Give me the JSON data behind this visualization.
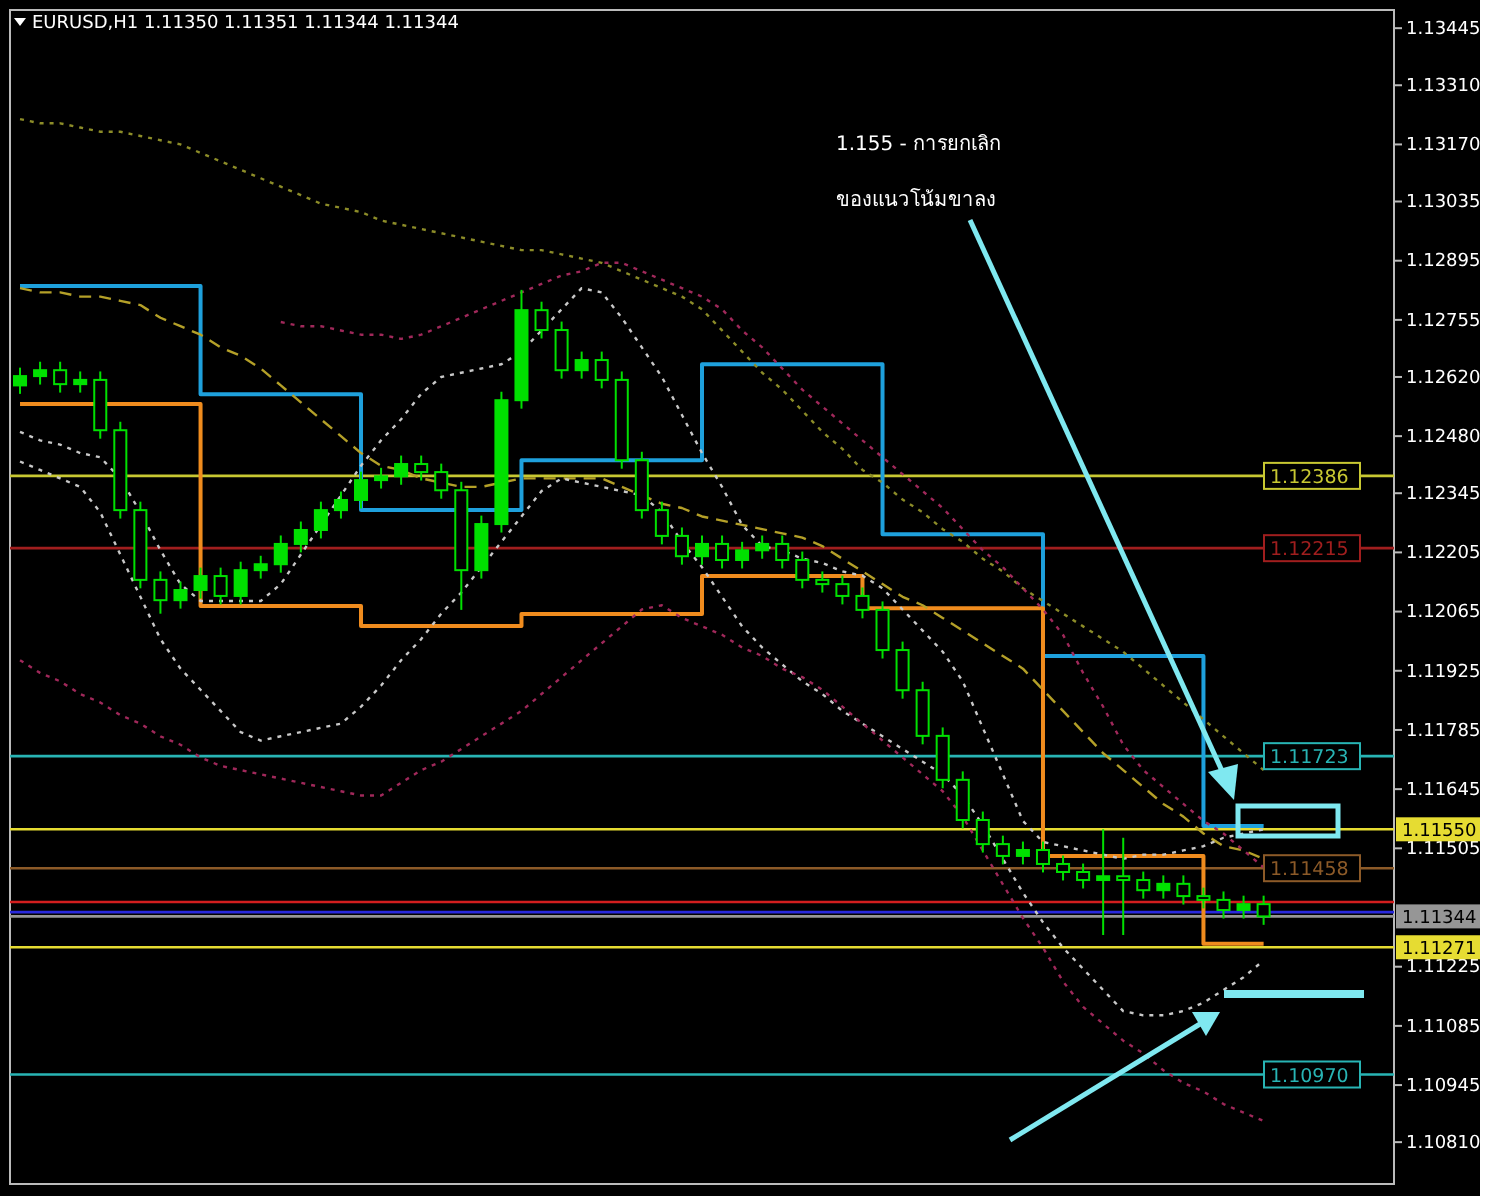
{
  "chart_data": {
    "type": "candlestick",
    "title": "EURUSD,H1  1.11350 1.11351 1.11344 1.11344",
    "annotations": [
      "1.155 - การยกเลิก\nของแนวโน้มขาลง"
    ],
    "color": "#00e000",
    "categories": [
      null,
      null,
      null,
      null,
      null,
      null,
      null,
      null,
      null,
      null,
      null,
      null,
      null,
      null,
      null,
      null,
      null,
      null,
      null,
      null,
      null,
      null,
      null,
      null,
      null,
      null,
      null,
      null,
      null,
      null,
      null,
      null,
      null,
      null,
      null,
      null,
      null,
      null,
      null,
      null,
      null,
      null,
      null,
      null,
      null,
      null,
      null,
      null,
      null,
      null,
      null,
      null,
      null,
      null,
      null,
      null,
      null,
      null,
      null,
      null,
      null,
      null,
      null,
      null,
      null,
      null,
      null,
      null,
      null
    ],
    "ohlc": [
      [
        1.126,
        1.12642,
        1.1258,
        1.12622
      ],
      [
        1.12622,
        1.12656,
        1.12602,
        1.12636
      ],
      [
        1.12636,
        1.12656,
        1.12583,
        1.12603
      ],
      [
        1.12603,
        1.12633,
        1.12583,
        1.12613
      ],
      [
        1.12613,
        1.12633,
        1.12474,
        1.12494
      ],
      [
        1.12494,
        1.12514,
        1.12285,
        1.12305
      ],
      [
        1.12305,
        1.12325,
        1.1212,
        1.1214
      ],
      [
        1.1214,
        1.1216,
        1.1206,
        1.12092
      ],
      [
        1.12092,
        1.12136,
        1.12072,
        1.12116
      ],
      [
        1.12116,
        1.12169,
        1.12096,
        1.12149
      ],
      [
        1.12149,
        1.12169,
        1.12082,
        1.12102
      ],
      [
        1.12102,
        1.12183,
        1.12082,
        1.12163
      ],
      [
        1.12163,
        1.12197,
        1.12143,
        1.12177
      ],
      [
        1.12177,
        1.12245,
        1.12157,
        1.12225
      ],
      [
        1.12225,
        1.12278,
        1.12205,
        1.12258
      ],
      [
        1.12258,
        1.12325,
        1.12238,
        1.12305
      ],
      [
        1.12305,
        1.12349,
        1.12285,
        1.12329
      ],
      [
        1.12329,
        1.12396,
        1.12309,
        1.12376
      ],
      [
        1.12376,
        1.12405,
        1.12356,
        1.12385
      ],
      [
        1.12385,
        1.12434,
        1.12365,
        1.12414
      ],
      [
        1.12414,
        1.12434,
        1.12375,
        1.12395
      ],
      [
        1.12395,
        1.12415,
        1.12332,
        1.12352
      ],
      [
        1.12352,
        1.12372,
        1.12069,
        1.12163
      ],
      [
        1.12163,
        1.12292,
        1.12143,
        1.12272
      ],
      [
        1.12272,
        1.12585,
        1.12252,
        1.12565
      ],
      [
        1.12565,
        1.12826,
        1.12545,
        1.12778
      ],
      [
        1.12778,
        1.12798,
        1.12711,
        1.12731
      ],
      [
        1.12731,
        1.12751,
        1.12616,
        1.12636
      ],
      [
        1.12636,
        1.1268,
        1.12616,
        1.1266
      ],
      [
        1.1266,
        1.1268,
        1.12593,
        1.12613
      ],
      [
        1.12613,
        1.12633,
        1.12403,
        1.12423
      ],
      [
        1.12423,
        1.12443,
        1.12285,
        1.12305
      ],
      [
        1.12305,
        1.12325,
        1.12224,
        1.12244
      ],
      [
        1.12244,
        1.12264,
        1.12176,
        1.12196
      ],
      [
        1.12196,
        1.12245,
        1.12176,
        1.12225
      ],
      [
        1.12225,
        1.12245,
        1.12167,
        1.12187
      ],
      [
        1.12187,
        1.1223,
        1.12167,
        1.1221
      ],
      [
        1.1221,
        1.12245,
        1.1219,
        1.12225
      ],
      [
        1.12225,
        1.12245,
        1.12167,
        1.12187
      ],
      [
        1.12187,
        1.12207,
        1.1212,
        1.1214
      ],
      [
        1.1214,
        1.1216,
        1.1211,
        1.1213
      ],
      [
        1.1213,
        1.1215,
        1.12082,
        1.12102
      ],
      [
        1.12102,
        1.12122,
        1.12049,
        1.12069
      ],
      [
        1.12069,
        1.12089,
        1.11954,
        1.11974
      ],
      [
        1.11974,
        1.11994,
        1.11859,
        1.11879
      ],
      [
        1.11879,
        1.11899,
        1.11751,
        1.11771
      ],
      [
        1.11771,
        1.11791,
        1.11647,
        1.11667
      ],
      [
        1.11667,
        1.11687,
        1.11552,
        1.11572
      ],
      [
        1.11572,
        1.11592,
        1.11495,
        1.11515
      ],
      [
        1.11515,
        1.11535,
        1.11467,
        1.11487
      ],
      [
        1.11487,
        1.11521,
        1.11467,
        1.11501
      ],
      [
        1.11501,
        1.11521,
        1.11448,
        1.11468
      ],
      [
        1.11468,
        1.11488,
        1.11429,
        1.11449
      ],
      [
        1.11449,
        1.11469,
        1.1141,
        1.1143
      ],
      [
        1.1143,
        1.1155,
        1.113,
        1.11439
      ],
      [
        1.11439,
        1.1153,
        1.113,
        1.1143
      ],
      [
        1.1143,
        1.1145,
        1.11386,
        1.11406
      ],
      [
        1.11406,
        1.11441,
        1.11386,
        1.11421
      ],
      [
        1.11421,
        1.11441,
        1.11372,
        1.11392
      ],
      [
        1.11392,
        1.11412,
        1.11363,
        1.11383
      ],
      [
        1.11383,
        1.11403,
        1.11339,
        1.11359
      ],
      [
        1.11359,
        1.11393,
        1.11339,
        1.11373
      ],
      [
        1.11373,
        1.11393,
        1.11324,
        1.11344
      ],
      null,
      null,
      null,
      null,
      null,
      null
    ],
    "series": [
      {
        "type": "step",
        "color": "#1ea0dc",
        "values": [
          1.12835,
          1.12835,
          1.12835,
          1.12835,
          1.12835,
          1.12835,
          1.12835,
          1.12835,
          1.12835,
          1.12579,
          1.12579,
          1.12579,
          1.12579,
          1.12579,
          1.12579,
          1.12579,
          1.12579,
          1.12305,
          1.12305,
          1.12305,
          1.12305,
          1.12305,
          1.12305,
          1.12305,
          1.12305,
          1.12423,
          1.12423,
          1.12423,
          1.12423,
          1.12423,
          1.12423,
          1.12423,
          1.12423,
          1.12423,
          1.1265,
          1.1265,
          1.1265,
          1.1265,
          1.1265,
          1.1265,
          1.1265,
          1.1265,
          1.1265,
          1.12248,
          1.12248,
          1.12248,
          1.12248,
          1.12248,
          1.12248,
          1.12248,
          1.12248,
          1.1196,
          1.1196,
          1.1196,
          1.1196,
          1.1196,
          1.1196,
          1.1196,
          1.1196,
          1.11558,
          1.11558,
          1.11558,
          1.11558,
          null,
          null,
          null,
          null,
          null,
          null
        ]
      },
      {
        "type": "step",
        "color": "#f08c1e",
        "values": [
          1.12556,
          1.12556,
          1.12556,
          1.12556,
          1.12556,
          1.12556,
          1.12556,
          1.12556,
          1.12556,
          1.12078,
          1.12078,
          1.12078,
          1.12078,
          1.12078,
          1.12078,
          1.12078,
          1.12078,
          1.12031,
          1.12031,
          1.12031,
          1.12031,
          1.12031,
          1.12031,
          1.12031,
          1.12031,
          1.12059,
          1.12059,
          1.12059,
          1.12059,
          1.12059,
          1.12059,
          1.12059,
          1.12059,
          1.12059,
          1.12149,
          1.12149,
          1.12149,
          1.12149,
          1.12149,
          1.12149,
          1.12149,
          1.12149,
          1.12073,
          1.12073,
          1.12073,
          1.12073,
          1.12073,
          1.12073,
          1.12073,
          1.12073,
          1.12073,
          1.11487,
          1.11487,
          1.11487,
          1.11487,
          1.11487,
          1.11487,
          1.11487,
          1.11487,
          1.11279,
          1.11279,
          1.11279,
          1.11279,
          null,
          null,
          null,
          null,
          null,
          null
        ]
      },
      {
        "type": "line",
        "line_style": "dotted",
        "color": "#8c8c28",
        "values": [
          1.1323,
          1.1322,
          1.1322,
          1.1321,
          1.132,
          1.132,
          1.1319,
          1.1318,
          1.1317,
          1.1315,
          1.1313,
          1.1311,
          1.1309,
          1.1307,
          1.1305,
          1.1303,
          1.1302,
          1.1301,
          1.1299,
          1.1298,
          1.1297,
          1.1296,
          1.1295,
          1.1294,
          1.1293,
          1.1292,
          1.1292,
          1.1291,
          1.129,
          1.1289,
          1.1287,
          1.1285,
          1.1283,
          1.1281,
          1.1278,
          1.1273,
          1.1268,
          1.1263,
          1.1259,
          1.1254,
          1.1249,
          1.1245,
          1.124,
          1.1237,
          1.1233,
          1.123,
          1.1226,
          1.1223,
          1.1219,
          1.1216,
          1.1212,
          1.1209,
          1.1206,
          1.1203,
          1.12,
          1.1197,
          1.1193,
          1.1189,
          1.1185,
          1.1181,
          1.1177,
          1.1173,
          1.1169,
          null,
          null,
          null,
          null,
          null,
          null
        ]
      },
      {
        "type": "line",
        "line_style": "dashed",
        "color": "#b4a028",
        "values": [
          1.1283,
          1.1282,
          1.1282,
          1.1281,
          1.1281,
          1.128,
          1.1279,
          1.1276,
          1.1274,
          1.1272,
          1.1269,
          1.1267,
          1.1264,
          1.126,
          1.1256,
          1.1252,
          1.1248,
          1.1244,
          1.1241,
          1.124,
          1.1238,
          1.1237,
          1.1236,
          1.1236,
          1.1237,
          1.1238,
          1.1238,
          1.1238,
          1.1238,
          1.1238,
          1.1236,
          1.1234,
          1.1232,
          1.1231,
          1.1229,
          1.1228,
          1.1227,
          1.1226,
          1.1225,
          1.1224,
          1.1222,
          1.1219,
          1.1216,
          1.1213,
          1.121,
          1.1208,
          1.1205,
          1.1202,
          1.1199,
          1.1196,
          1.1193,
          1.1188,
          1.1183,
          1.1178,
          1.1173,
          1.1169,
          1.1165,
          1.1161,
          1.1158,
          1.1154,
          1.1151,
          1.115,
          1.1148,
          null,
          null,
          null,
          null,
          null,
          null
        ]
      },
      {
        "type": "line",
        "line_style": "dotted",
        "color": "#c8c8c8",
        "values": [
          1.1249,
          1.1247,
          1.1246,
          1.1244,
          1.1243,
          1.1238,
          1.123,
          1.1221,
          1.1213,
          1.1209,
          1.1209,
          1.1209,
          1.1209,
          1.1213,
          1.122,
          1.1227,
          1.1234,
          1.1241,
          1.1247,
          1.1252,
          1.1258,
          1.1262,
          1.1263,
          1.1264,
          1.1265,
          1.1268,
          1.1273,
          1.1278,
          1.1283,
          1.1282,
          1.1276,
          1.1269,
          1.1262,
          1.1253,
          1.1244,
          1.1236,
          1.1227,
          1.1222,
          1.1221,
          1.1219,
          1.1218,
          1.1216,
          1.1215,
          1.1212,
          1.1207,
          1.1202,
          1.1197,
          1.119,
          1.1179,
          1.1168,
          1.1157,
          1.1152,
          1.1151,
          1.115,
          1.1149,
          1.1148,
          1.1149,
          1.1149,
          1.115,
          1.1151,
          1.1153,
          1.1154,
          1.1155,
          null,
          null,
          null,
          null,
          null,
          null
        ]
      },
      {
        "type": "line",
        "line_style": "dotted",
        "color": "#c8c8c8",
        "values": [
          1.1242,
          1.124,
          1.1238,
          1.1236,
          1.123,
          1.122,
          1.121,
          1.12,
          1.1193,
          1.1188,
          1.1183,
          1.1178,
          1.1176,
          1.1177,
          1.1178,
          1.1179,
          1.118,
          1.1184,
          1.1189,
          1.1195,
          1.12,
          1.1206,
          1.1211,
          1.1217,
          1.1223,
          1.1229,
          1.1235,
          1.1238,
          1.1237,
          1.1236,
          1.1235,
          1.1234,
          1.123,
          1.1223,
          1.1217,
          1.121,
          1.1203,
          1.1198,
          1.1194,
          1.119,
          1.1187,
          1.1183,
          1.118,
          1.1177,
          1.1174,
          1.1171,
          1.1168,
          1.1163,
          1.1156,
          1.1148,
          1.114,
          1.1133,
          1.1127,
          1.1122,
          1.1117,
          1.1112,
          1.1111,
          1.1111,
          1.1112,
          1.1114,
          1.1117,
          1.112,
          1.1124,
          null,
          null,
          null,
          null,
          null,
          null
        ]
      },
      {
        "type": "line",
        "line_style": "dotted",
        "color": "#a0285a",
        "values": [
          1.1195,
          1.1192,
          1.119,
          1.1187,
          1.1185,
          1.1182,
          1.118,
          1.1177,
          1.1175,
          1.1172,
          1.117,
          1.1169,
          1.1168,
          1.1167,
          1.1166,
          1.1165,
          1.1164,
          1.1163,
          1.1163,
          1.1166,
          1.1169,
          1.1171,
          1.1174,
          1.1177,
          1.118,
          1.1183,
          1.1187,
          1.1191,
          1.1195,
          1.1199,
          1.1203,
          1.1207,
          1.1208,
          1.1205,
          1.1203,
          1.1201,
          1.1198,
          1.1196,
          1.1193,
          1.1191,
          1.1188,
          1.1184,
          1.118,
          1.1176,
          1.1172,
          1.1168,
          1.1164,
          1.1158,
          1.115,
          1.1142,
          1.1134,
          1.1127,
          1.1119,
          1.1113,
          1.1109,
          1.1105,
          1.1102,
          1.1098,
          1.1095,
          1.1093,
          1.109,
          1.1088,
          1.1086,
          null,
          null,
          null,
          null,
          null,
          null
        ]
      },
      {
        "type": "line",
        "line_style": "dotted",
        "color": "#a0285a",
        "values": [
          null,
          null,
          null,
          null,
          null,
          null,
          null,
          null,
          null,
          null,
          null,
          null,
          null,
          1.1275,
          1.1274,
          1.1274,
          1.1273,
          1.1272,
          1.1272,
          1.1271,
          1.1272,
          1.1274,
          1.1276,
          1.1278,
          1.128,
          1.1282,
          1.1284,
          1.1286,
          1.1287,
          1.1289,
          1.1289,
          1.1287,
          1.1285,
          1.1283,
          1.1281,
          1.1278,
          1.1273,
          1.1269,
          1.1264,
          1.1259,
          1.1255,
          1.1251,
          1.1247,
          1.1243,
          1.1239,
          1.1235,
          1.1231,
          1.1226,
          1.1221,
          1.1217,
          1.1212,
          1.1207,
          1.1201,
          1.1192,
          1.1184,
          1.1175,
          1.1169,
          1.1165,
          1.1161,
          1.1157,
          1.1154,
          1.115,
          1.1146,
          null,
          null,
          null,
          null,
          null,
          null
        ]
      }
    ],
    "ref_lines": [
      {
        "axis": "y",
        "value": 1.12386,
        "label": "1.12386",
        "color": "#c8c832"
      },
      {
        "axis": "y",
        "value": 1.12215,
        "label": "1.12215",
        "color": "#a01e1e"
      },
      {
        "axis": "y",
        "value": 1.11723,
        "label": "1.11723",
        "color": "#28b4b4"
      },
      {
        "axis": "y",
        "value": 1.1155,
        "label": "1.11550",
        "color": "#e6dc32"
      },
      {
        "axis": "y",
        "value": 1.11458,
        "label": "1.11458",
        "color": "#8c5a28"
      },
      {
        "axis": "y",
        "value": 1.11378,
        "label": null,
        "color": "#d21e1e"
      },
      {
        "axis": "y",
        "value": 1.11354,
        "label": null,
        "color": "#2828dc"
      },
      {
        "axis": "y",
        "value": 1.11344,
        "label": "1.11344",
        "color": "#969696"
      },
      {
        "axis": "y",
        "value": 1.11271,
        "label": "1.11271",
        "color": "#e6dc32"
      },
      {
        "axis": "y",
        "value": 1.1097,
        "label": "1.10970",
        "color": "#28b4b4"
      }
    ],
    "ylim": [
      1.10711,
      1.13488
    ],
    "yticks": [
      {
        "value": 1.13445,
        "label": "1.13445"
      },
      {
        "value": 1.1331,
        "label": "1.13310"
      },
      {
        "value": 1.1317,
        "label": "1.13170"
      },
      {
        "value": 1.13035,
        "label": "1.13035"
      },
      {
        "value": 1.12895,
        "label": "1.12895"
      },
      {
        "value": 1.12755,
        "label": "1.12755"
      },
      {
        "value": 1.1262,
        "label": "1.12620"
      },
      {
        "value": 1.1248,
        "label": "1.12480"
      },
      {
        "value": 1.12345,
        "label": "1.12345"
      },
      {
        "value": 1.12205,
        "label": "1.12205"
      },
      {
        "value": 1.12065,
        "label": "1.12065"
      },
      {
        "value": 1.11925,
        "label": "1.11925"
      },
      {
        "value": 1.11785,
        "label": "1.11785"
      },
      {
        "value": 1.11645,
        "label": "1.11645"
      },
      {
        "value": 1.11505,
        "label": "1.11505"
      },
      {
        "value": 1.11225,
        "label": "1.11225"
      },
      {
        "value": 1.11085,
        "label": "1.11085"
      },
      {
        "value": 1.10945,
        "label": "1.10945"
      },
      {
        "value": 1.1081,
        "label": "1.10810"
      }
    ],
    "tick_labels": "y",
    "grid": false
  }
}
